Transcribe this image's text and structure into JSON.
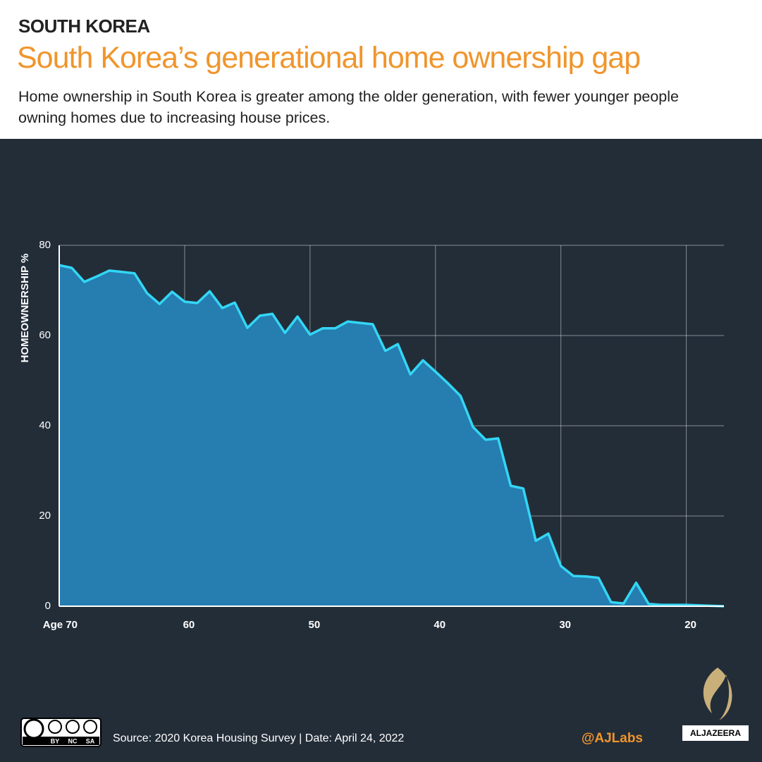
{
  "chart_data": {
    "type": "area",
    "kicker": "SOUTH KOREA",
    "title": "South Korea’s generational home ownership gap",
    "subtitle": "Home ownership in South Korea is greater among the older generation, with fewer younger people owning homes due to increasing house prices.",
    "ylabel": "HOMEOWNERSHIP %",
    "x": [
      70,
      69,
      68,
      67,
      66,
      65,
      64,
      63,
      62,
      61,
      60,
      59,
      58,
      57,
      56,
      55,
      54,
      53,
      52,
      51,
      50,
      49,
      48,
      47,
      46,
      45,
      44,
      43,
      42,
      41,
      40,
      39,
      38,
      37,
      36,
      35,
      34,
      33,
      32,
      31,
      30,
      29,
      28,
      27,
      26,
      25,
      24,
      23,
      22,
      21,
      20,
      19,
      18,
      17
    ],
    "series": [
      {
        "color": "#33d6f5",
        "values": [
          75.6,
          75,
          71.9,
          73.1,
          74.4,
          74.1,
          73.8,
          69.4,
          67,
          69.7,
          67.5,
          67.2,
          69.8,
          66.1,
          67.3,
          61.7,
          64.4,
          64.8,
          60.6,
          64.2,
          60.2,
          61.6,
          61.6,
          63.1,
          62.8,
          62.5,
          56.6,
          58.1,
          51.4,
          54.5,
          52,
          49.4,
          46.6,
          39.7,
          36.9,
          37.2,
          26.7,
          26.1,
          14.5,
          16.1,
          8.9,
          6.7,
          6.6,
          6.3,
          0.9,
          0.6,
          5.2,
          0.5,
          0.3,
          0.3,
          0.3,
          0.2,
          0.1,
          0
        ]
      }
    ],
    "fill": "#257db0",
    "xlim": [
      70,
      17
    ],
    "xticks": [
      {
        "value": 70,
        "label": "Age 70"
      },
      60,
      50,
      40,
      30,
      20
    ],
    "ylim": [
      0,
      80
    ],
    "yticks": [
      0,
      20,
      40,
      60,
      80
    ],
    "grid": true,
    "source": "Source: 2020 Korea Housing Survey  |  Date: April 24, 2022",
    "license": [
      "BY",
      "NC",
      "SA"
    ],
    "credit": "@AJLabs",
    "brand": "ALJAZEERA"
  }
}
